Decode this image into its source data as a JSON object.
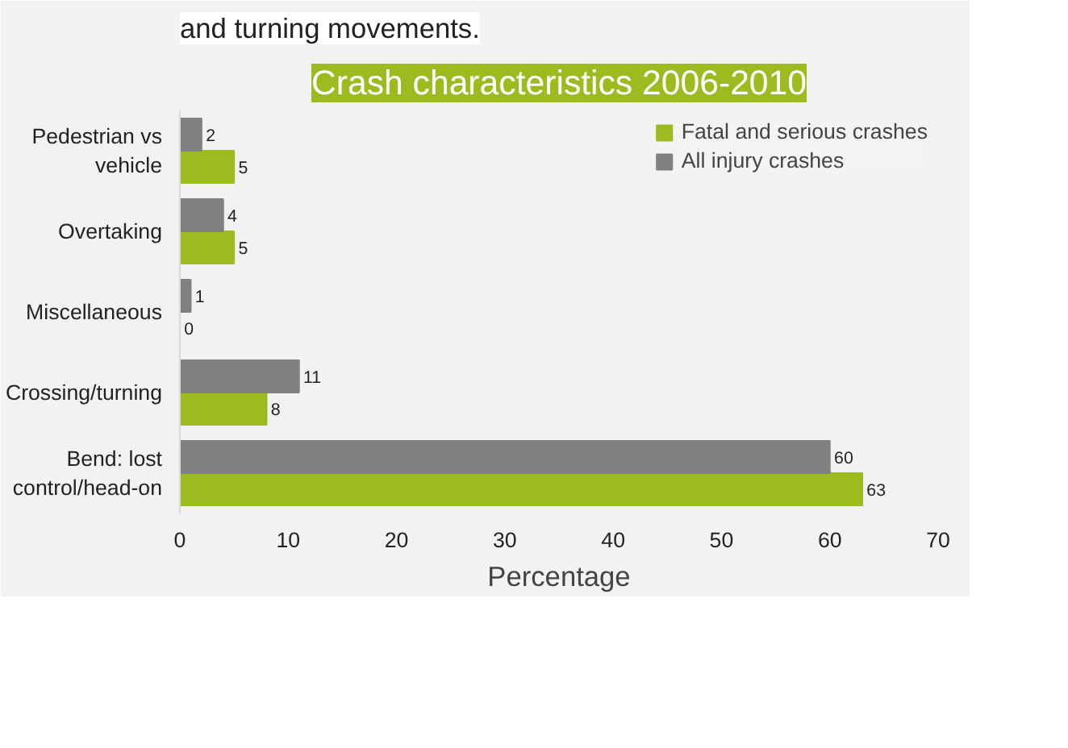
{
  "chart_data": {
    "type": "bar",
    "orientation": "horizontal",
    "title": "Crash characteristics 2006-2010",
    "xlabel": "Percentage",
    "annotations": [
      "and turning movements."
    ],
    "categories": [
      "Pedestrian vs\nvehicle",
      "Overtaking",
      "Miscellaneous",
      "Crossing/turning",
      "Bend: lost\ncontrol/head-on"
    ],
    "series": [
      {
        "name": "Fatal and serious crashes",
        "color": "#9bbb1f",
        "values": [
          5,
          5,
          0,
          8,
          63
        ]
      },
      {
        "name": "All injury crashes",
        "color": "#808080",
        "values": [
          2,
          4,
          1,
          11,
          60
        ]
      }
    ],
    "xlim": [
      0,
      70
    ],
    "xticks": [
      0,
      10,
      20,
      30,
      40,
      50,
      60,
      70
    ],
    "grid": false,
    "legend": "top right",
    "data_labels": true
  }
}
